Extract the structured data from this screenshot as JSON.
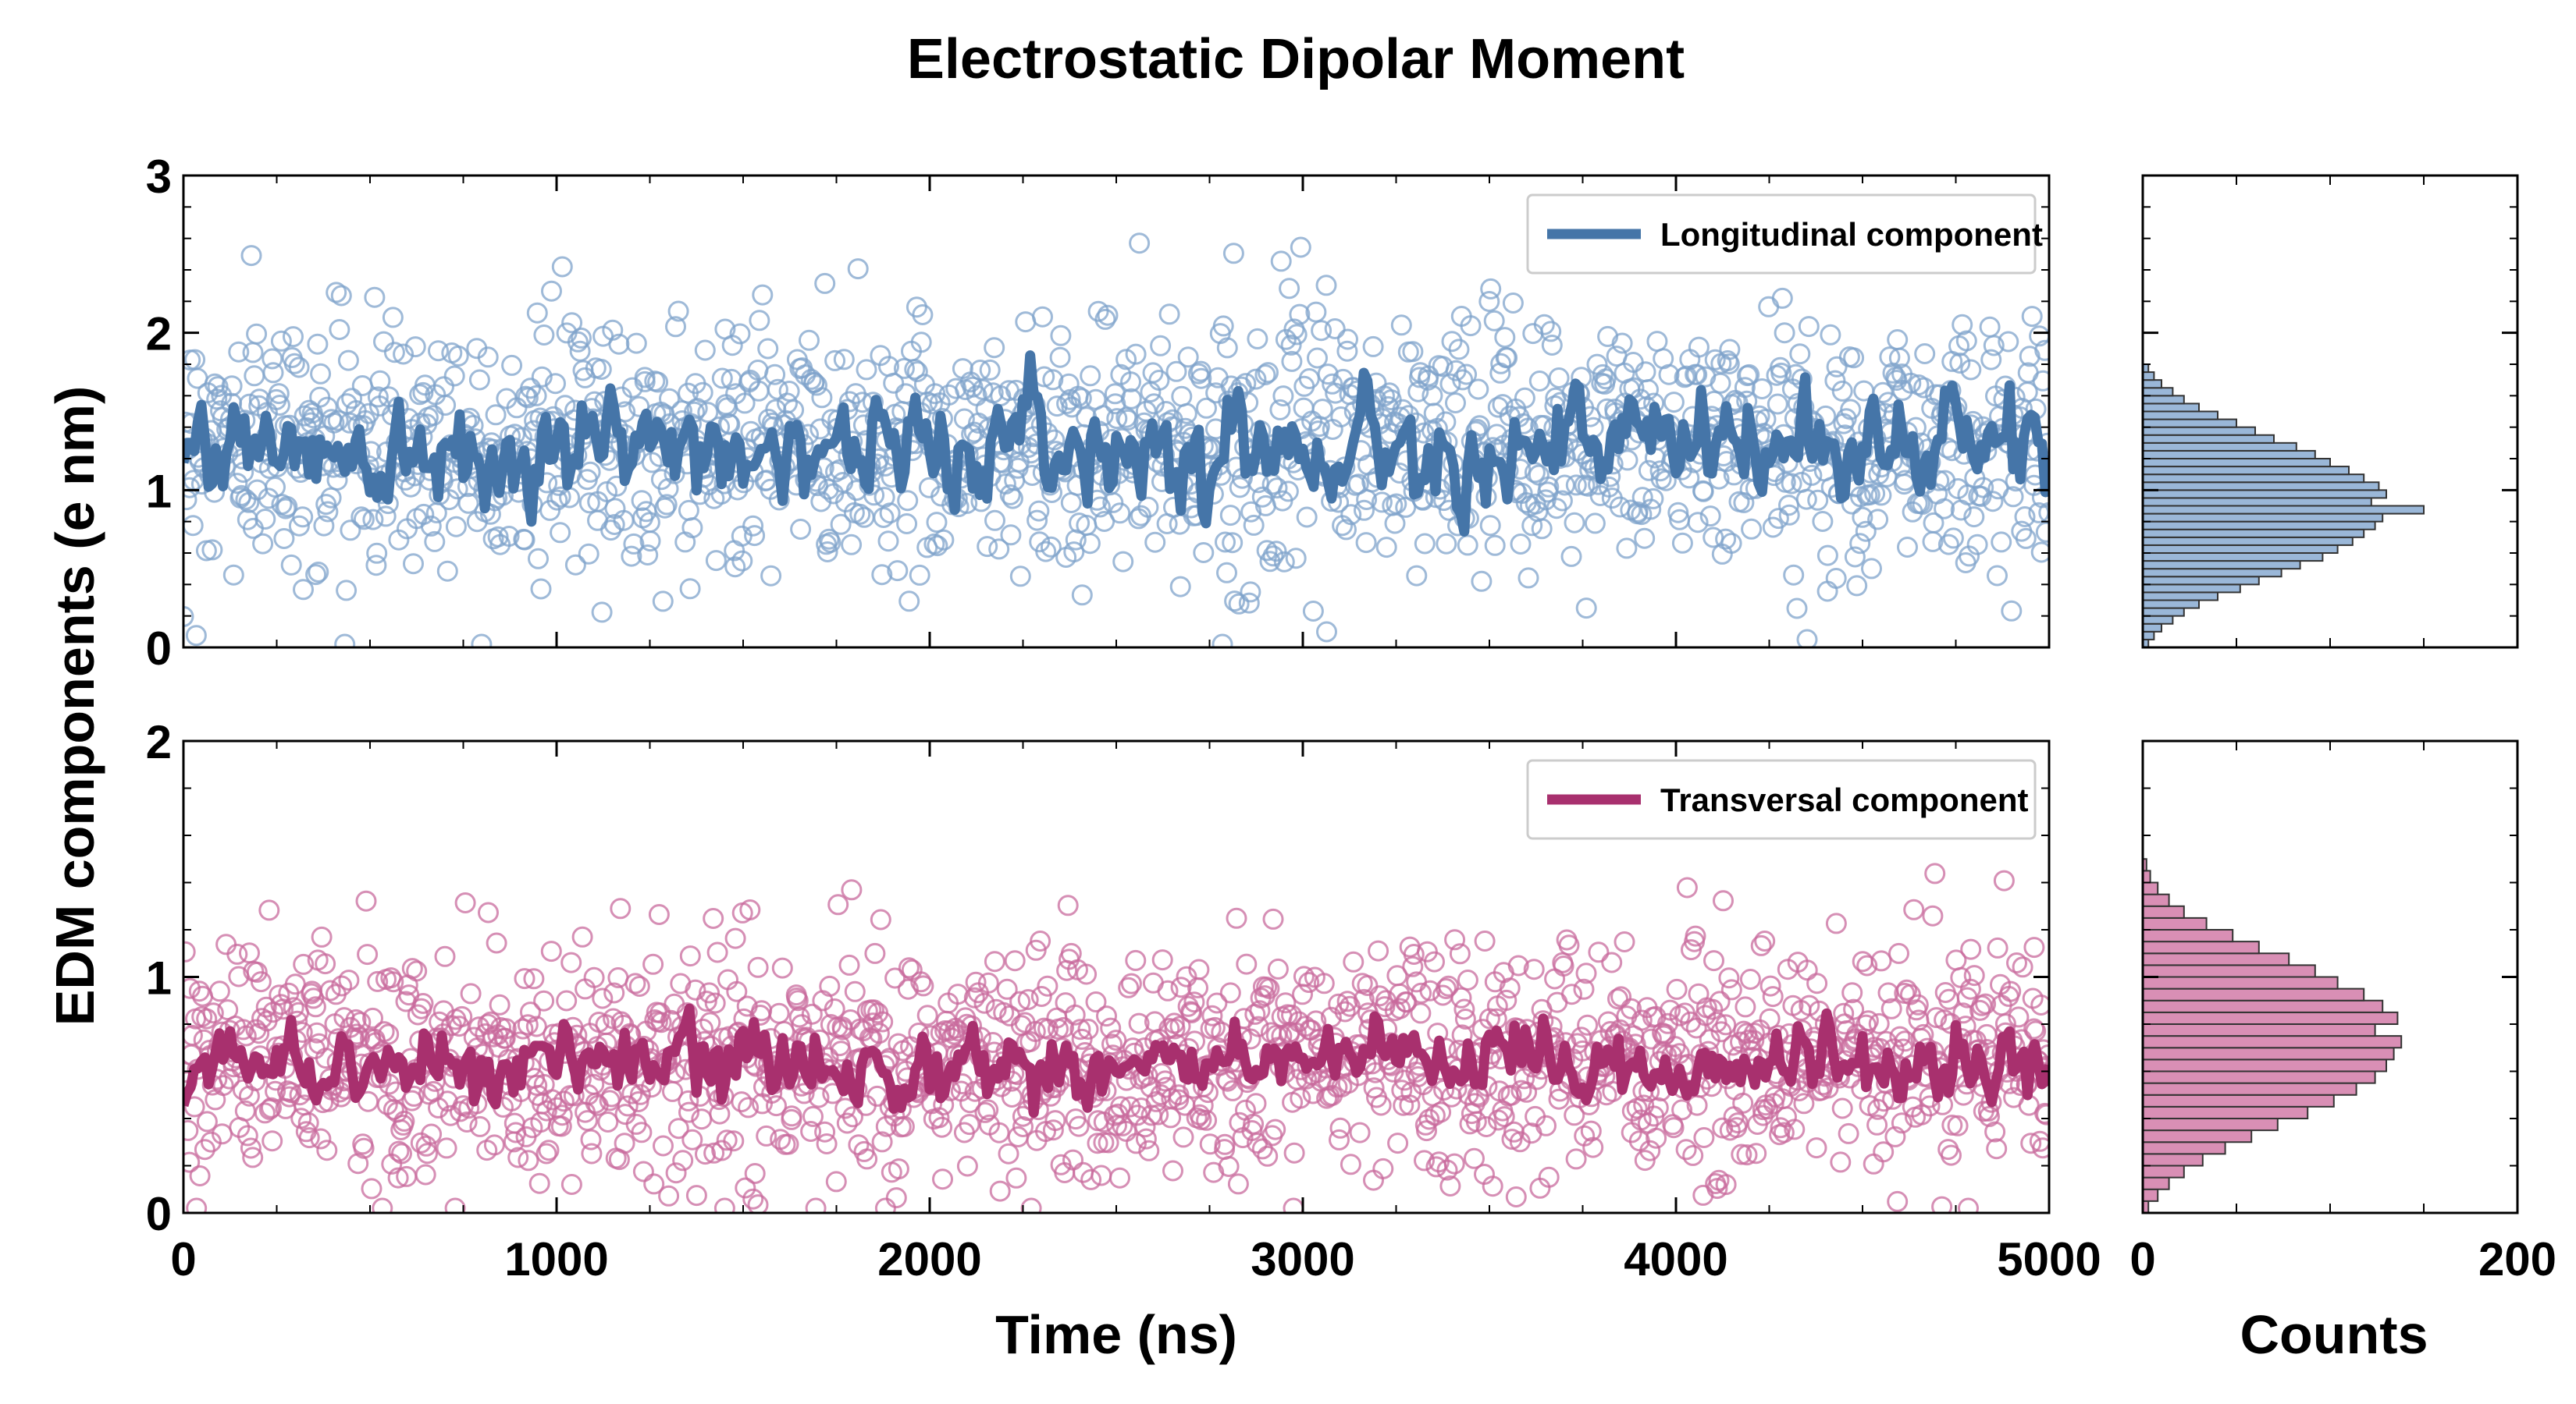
{
  "chart_data": {
    "type": "scatter",
    "title": "Electrostatic Dipolar Moment",
    "ylabel": "EDM components (e nm)",
    "xlabel": "Time (ns)",
    "hist_xlabel": "Counts",
    "xlim": [
      0,
      5000
    ],
    "hist_xlim": [
      0,
      200
    ],
    "x_ticks": [
      "0",
      "1000",
      "2000",
      "3000",
      "4000",
      "5000"
    ],
    "hist_x_ticks": [
      "0",
      "200"
    ],
    "panels": [
      {
        "id": "longitudinal",
        "series_name": "Longitudinal component",
        "legend_position": "top-right",
        "ylim": [
          0,
          3
        ],
        "y_ticks": [
          "0",
          "1",
          "2",
          "3"
        ],
        "line_color": "#4575a8",
        "marker_color": "#7fa3cb",
        "hist_fill": "#9ab7d8",
        "scatter_mean": 1.3,
        "scatter_spread": 0.4,
        "line_mean": 1.28,
        "line_spread": 0.18,
        "hist_bin_width": 0.05,
        "hist_counts": [
          3,
          6,
          10,
          16,
          22,
          30,
          40,
          52,
          62,
          74,
          84,
          96,
          104,
          112,
          118,
          124,
          128,
          150,
          122,
          130,
          126,
          118,
          110,
          100,
          92,
          82,
          70,
          60,
          50,
          40,
          30,
          22,
          16,
          10,
          6,
          3
        ]
      },
      {
        "id": "transversal",
        "series_name": "Transversal component",
        "legend_position": "top-right",
        "ylim": [
          0,
          2
        ],
        "y_ticks": [
          "0",
          "1",
          "2"
        ],
        "line_color": "#a8306e",
        "marker_color": "#c86a9c",
        "hist_fill": "#d98fb5",
        "scatter_mean": 0.65,
        "scatter_spread": 0.25,
        "line_mean": 0.63,
        "line_spread": 0.09,
        "hist_bin_width": 0.05,
        "hist_counts": [
          3,
          8,
          14,
          22,
          32,
          44,
          58,
          72,
          88,
          102,
          114,
          124,
          130,
          134,
          138,
          124,
          136,
          128,
          118,
          104,
          92,
          78,
          62,
          48,
          34,
          22,
          14,
          8,
          4,
          2
        ]
      }
    ]
  }
}
